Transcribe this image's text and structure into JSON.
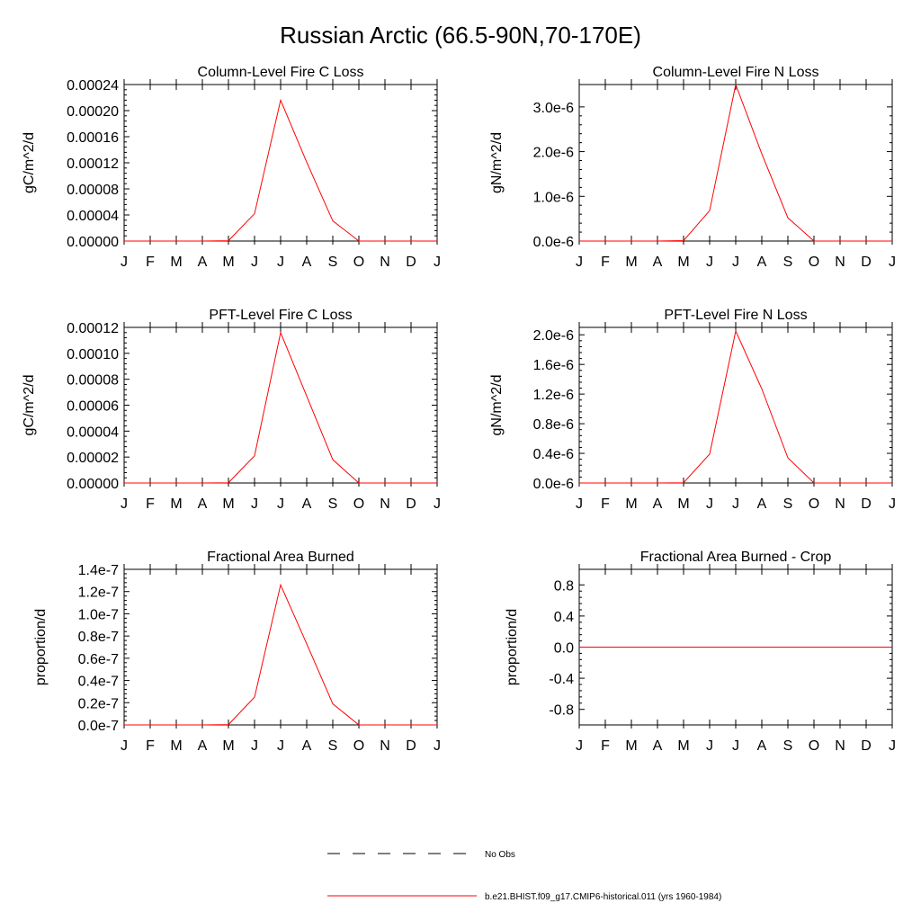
{
  "page_title": "Russian Arctic (66.5-90N,70-170E)",
  "months": [
    "J",
    "F",
    "M",
    "A",
    "M",
    "J",
    "J",
    "A",
    "S",
    "O",
    "N",
    "D",
    "J"
  ],
  "colors": {
    "model_line": "#ff0000",
    "obs_line": "#000000",
    "axes": "#000000"
  },
  "legend": {
    "obs_label": "No Obs",
    "model_label": "b.e21.BHIST.f09_g17.CMIP6-historical.011 (yrs 1960-1984)"
  },
  "chart_data": [
    {
      "type": "line",
      "title": "Column-Level Fire C Loss",
      "ylabel": "gC/m^2/d",
      "ylim": [
        0,
        0.00024
      ],
      "yticks": [
        "0.00000",
        "0.00004",
        "0.00008",
        "0.00012",
        "0.00016",
        "0.00020",
        "0.00024"
      ],
      "categories": [
        "J",
        "F",
        "M",
        "A",
        "M",
        "J",
        "J",
        "A",
        "S",
        "O",
        "N",
        "D",
        "J"
      ],
      "series": [
        {
          "values": [
            0,
            0,
            0,
            0,
            5e-07,
            4.2e-05,
            0.000216,
            0.000121,
            3.1e-05,
            0,
            0,
            0,
            0
          ]
        }
      ]
    },
    {
      "type": "line",
      "title": "Column-Level Fire N Loss",
      "ylabel": "gN/m^2/d",
      "ylim": [
        0,
        3.5e-06
      ],
      "yticks": [
        "0.0e-6",
        "1.0e-6",
        "2.0e-6",
        "3.0e-6"
      ],
      "categories": [
        "J",
        "F",
        "M",
        "A",
        "M",
        "J",
        "J",
        "A",
        "S",
        "O",
        "N",
        "D",
        "J"
      ],
      "series": [
        {
          "values": [
            0,
            0,
            0,
            0,
            1e-08,
            6.8e-07,
            3.5e-06,
            1.95e-06,
            5.2e-07,
            0,
            0,
            0,
            0
          ]
        }
      ]
    },
    {
      "type": "line",
      "title": "PFT-Level Fire C Loss",
      "ylabel": "gC/m^2/d",
      "ylim": [
        0,
        0.00012
      ],
      "yticks": [
        "0.00000",
        "0.00002",
        "0.00004",
        "0.00006",
        "0.00008",
        "0.00010",
        "0.00012"
      ],
      "categories": [
        "J",
        "F",
        "M",
        "A",
        "M",
        "J",
        "J",
        "A",
        "S",
        "O",
        "N",
        "D",
        "J"
      ],
      "series": [
        {
          "values": [
            0,
            0,
            0,
            0,
            2e-07,
            2.1e-05,
            0.000116,
            6.7e-05,
            1.8e-05,
            0,
            0,
            0,
            0
          ]
        }
      ]
    },
    {
      "type": "line",
      "title": "PFT-Level Fire N Loss",
      "ylabel": "gN/m^2/d",
      "ylim": [
        0,
        2.1e-06
      ],
      "yticks": [
        "0.0e-6",
        "0.4e-6",
        "0.8e-6",
        "1.2e-6",
        "1.6e-6",
        "2.0e-6"
      ],
      "categories": [
        "J",
        "F",
        "M",
        "A",
        "M",
        "J",
        "J",
        "A",
        "S",
        "O",
        "N",
        "D",
        "J"
      ],
      "series": [
        {
          "values": [
            0,
            0,
            0,
            0,
            3e-09,
            3.9e-07,
            2.05e-06,
            1.27e-06,
            3.4e-07,
            0,
            0,
            0,
            0
          ]
        }
      ]
    },
    {
      "type": "line",
      "title": "Fractional Area Burned",
      "ylabel": "proportion/d",
      "ylim": [
        0,
        1.4e-07
      ],
      "yticks": [
        "0.0e-7",
        "0.2e-7",
        "0.4e-7",
        "0.6e-7",
        "0.8e-7",
        "1.0e-7",
        "1.2e-7",
        "1.4e-7"
      ],
      "categories": [
        "J",
        "F",
        "M",
        "A",
        "M",
        "J",
        "J",
        "A",
        "S",
        "O",
        "N",
        "D",
        "J"
      ],
      "series": [
        {
          "values": [
            0,
            0,
            0,
            0,
            3e-10,
            2.5e-08,
            1.26e-07,
            7.3e-08,
            1.9e-08,
            0,
            0,
            0,
            0
          ]
        }
      ]
    },
    {
      "type": "line",
      "title": "Fractional Area Burned - Crop",
      "ylabel": "proportion/d",
      "ylim": [
        -1,
        1
      ],
      "yticks": [
        "-0.8",
        "-0.4",
        "0.0",
        "0.4",
        "0.8"
      ],
      "ytick_values": [
        -0.8,
        -0.4,
        0,
        0.4,
        0.8
      ],
      "categories": [
        "J",
        "F",
        "M",
        "A",
        "M",
        "J",
        "J",
        "A",
        "S",
        "O",
        "N",
        "D",
        "J"
      ],
      "series": [
        {
          "values": [
            0,
            0,
            0,
            0,
            0,
            0,
            0,
            0,
            0,
            0,
            0,
            0,
            0
          ]
        }
      ]
    }
  ]
}
